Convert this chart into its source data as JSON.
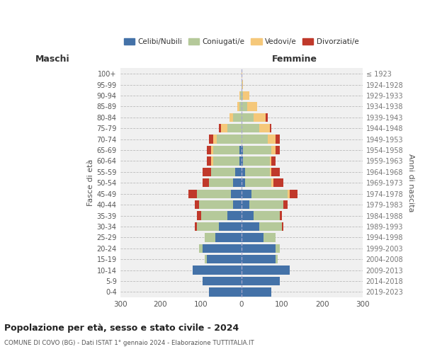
{
  "age_groups": [
    "0-4",
    "5-9",
    "10-14",
    "15-19",
    "20-24",
    "25-29",
    "30-34",
    "35-39",
    "40-44",
    "45-49",
    "50-54",
    "55-59",
    "60-64",
    "65-69",
    "70-74",
    "75-79",
    "80-84",
    "85-89",
    "90-94",
    "95-99",
    "100+"
  ],
  "birth_years": [
    "2019-2023",
    "2014-2018",
    "2009-2013",
    "2004-2008",
    "1999-2003",
    "1994-1998",
    "1989-1993",
    "1984-1988",
    "1979-1983",
    "1974-1978",
    "1969-1973",
    "1964-1968",
    "1959-1963",
    "1954-1958",
    "1949-1953",
    "1944-1948",
    "1939-1943",
    "1934-1938",
    "1929-1933",
    "1924-1928",
    "≤ 1923"
  ],
  "males": {
    "celibe": [
      80,
      95,
      120,
      85,
      95,
      65,
      55,
      35,
      20,
      25,
      20,
      15,
      5,
      5,
      0,
      0,
      0,
      0,
      0,
      0,
      0
    ],
    "coniugato": [
      0,
      0,
      0,
      5,
      10,
      25,
      55,
      65,
      85,
      85,
      60,
      60,
      65,
      65,
      60,
      35,
      20,
      5,
      2,
      0,
      0
    ],
    "vedovo": [
      0,
      0,
      0,
      0,
      0,
      0,
      0,
      0,
      0,
      0,
      0,
      0,
      5,
      5,
      10,
      15,
      10,
      5,
      2,
      0,
      0
    ],
    "divorziato": [
      0,
      0,
      0,
      0,
      0,
      0,
      5,
      10,
      10,
      20,
      15,
      20,
      10,
      10,
      10,
      5,
      0,
      0,
      0,
      0,
      0
    ]
  },
  "females": {
    "nubile": [
      75,
      95,
      120,
      85,
      85,
      55,
      45,
      30,
      20,
      25,
      10,
      10,
      5,
      5,
      0,
      0,
      0,
      0,
      0,
      0,
      0
    ],
    "coniugata": [
      0,
      0,
      0,
      5,
      10,
      30,
      55,
      65,
      85,
      90,
      65,
      60,
      65,
      70,
      65,
      45,
      30,
      15,
      5,
      2,
      0
    ],
    "vedova": [
      0,
      0,
      0,
      0,
      0,
      0,
      0,
      0,
      0,
      5,
      5,
      5,
      5,
      10,
      20,
      25,
      30,
      25,
      15,
      3,
      2
    ],
    "divorziata": [
      0,
      0,
      0,
      0,
      0,
      0,
      5,
      5,
      10,
      20,
      25,
      20,
      10,
      10,
      10,
      5,
      5,
      0,
      0,
      0,
      0
    ]
  },
  "colors": {
    "celibe": "#4472a8",
    "coniugato": "#b5c99a",
    "vedovo": "#f5c87a",
    "divorziato": "#c0392b"
  },
  "xlim": 300,
  "title1": "Popolazione per età, sesso e stato civile - 2024",
  "title2": "COMUNE DI COVO (BG) - Dati ISTAT 1° gennaio 2024 - Elaborazione TUTTITALIA.IT",
  "legend_labels": [
    "Celibi/Nubili",
    "Coniugati/e",
    "Vedovi/e",
    "Divorziati/e"
  ],
  "xlabel_left": "Maschi",
  "xlabel_right": "Femmine",
  "ylabel_left": "Fasce di età",
  "ylabel_right": "Anni di nascita",
  "bg_color": "#f0f0f0"
}
